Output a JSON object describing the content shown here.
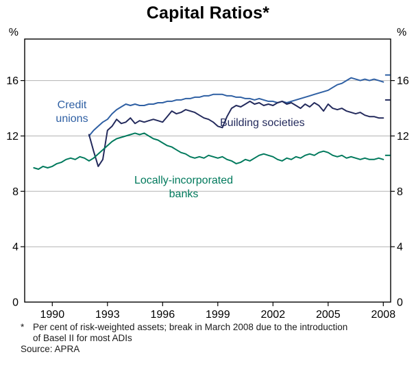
{
  "chart_data": {
    "type": "line",
    "title": "Capital Ratios*",
    "xlabel": "",
    "ylabel": "%",
    "xlim": [
      1988.5,
      2008.4
    ],
    "ylim": [
      0,
      19
    ],
    "x_ticks": [
      1990,
      1993,
      1996,
      1999,
      2002,
      2005,
      2008
    ],
    "y_ticks": [
      0,
      4,
      8,
      12,
      16
    ],
    "gridlines": [
      4,
      8,
      12,
      16
    ],
    "grid": true,
    "legend_position": "inline-annotations",
    "colors": {
      "axis": "#000000",
      "gridline": "#b3b3b3",
      "background": "#ffffff"
    },
    "break_note_x": [
      2008.1,
      2008.38
    ],
    "series": [
      {
        "id": "credit-unions",
        "name": "Credit unions",
        "color": "#2e5fa3",
        "x_start": 1992.0,
        "x_step_years": 0.25,
        "values": [
          12.0,
          12.4,
          12.7,
          13.0,
          13.2,
          13.6,
          13.9,
          14.1,
          14.3,
          14.2,
          14.3,
          14.2,
          14.2,
          14.3,
          14.3,
          14.4,
          14.4,
          14.5,
          14.5,
          14.6,
          14.6,
          14.7,
          14.7,
          14.8,
          14.8,
          14.9,
          14.9,
          15.0,
          15.0,
          15.0,
          14.9,
          14.9,
          14.8,
          14.8,
          14.7,
          14.7,
          14.6,
          14.7,
          14.6,
          14.5,
          14.5,
          14.4,
          14.5,
          14.4,
          14.5,
          14.6,
          14.7,
          14.8,
          14.9,
          15.0,
          15.1,
          15.2,
          15.3,
          15.5,
          15.7,
          15.8,
          16.0,
          16.2,
          16.1,
          16.0,
          16.1,
          16.0,
          16.1,
          16.0,
          15.9
        ],
        "break_march_2008_value": 16.4
      },
      {
        "id": "building-societies",
        "name": "Building societies",
        "color": "#232a5c",
        "x_start": 1992.0,
        "x_step_years": 0.25,
        "values": [
          12.1,
          10.9,
          9.8,
          10.3,
          12.4,
          12.7,
          13.2,
          12.9,
          13.0,
          13.3,
          12.9,
          13.1,
          13.0,
          13.1,
          13.2,
          13.1,
          13.0,
          13.4,
          13.8,
          13.6,
          13.7,
          13.9,
          13.8,
          13.7,
          13.5,
          13.3,
          13.2,
          13.0,
          12.7,
          12.6,
          13.4,
          14.0,
          14.2,
          14.1,
          14.3,
          14.5,
          14.3,
          14.4,
          14.2,
          14.3,
          14.2,
          14.4,
          14.5,
          14.3,
          14.4,
          14.2,
          14.0,
          14.3,
          14.1,
          14.4,
          14.2,
          13.8,
          14.3,
          14.0,
          13.9,
          14.0,
          13.8,
          13.7,
          13.6,
          13.7,
          13.5,
          13.4,
          13.4,
          13.3,
          13.3
        ],
        "break_march_2008_value": 14.6
      },
      {
        "id": "locally-incorporated-banks",
        "name": "Locally-incorporated banks",
        "color": "#00795c",
        "x_start": 1989.0,
        "x_step_years": 0.25,
        "values": [
          9.7,
          9.6,
          9.8,
          9.7,
          9.8,
          10.0,
          10.1,
          10.3,
          10.4,
          10.3,
          10.5,
          10.4,
          10.2,
          10.4,
          10.7,
          11.0,
          11.3,
          11.6,
          11.8,
          11.9,
          12.0,
          12.1,
          12.2,
          12.1,
          12.2,
          12.0,
          11.8,
          11.7,
          11.5,
          11.3,
          11.2,
          11.0,
          10.8,
          10.7,
          10.5,
          10.4,
          10.5,
          10.4,
          10.6,
          10.5,
          10.4,
          10.5,
          10.3,
          10.2,
          10.0,
          10.1,
          10.3,
          10.2,
          10.4,
          10.6,
          10.7,
          10.6,
          10.5,
          10.3,
          10.2,
          10.4,
          10.3,
          10.5,
          10.4,
          10.6,
          10.7,
          10.6,
          10.8,
          10.9,
          10.8,
          10.6,
          10.5,
          10.6,
          10.4,
          10.5,
          10.4,
          10.3,
          10.4,
          10.3,
          10.3,
          10.4,
          10.3
        ],
        "break_march_2008_value": 10.6
      }
    ],
    "annotations": {
      "credit_unions": {
        "line1": "Credit",
        "line2": "unions"
      },
      "building_societies": {
        "line1": "Building societies"
      },
      "banks": {
        "line1": "Locally-incorporated",
        "line2": "banks"
      }
    }
  },
  "footer": {
    "footnote_star": "*",
    "footnote_lines": [
      "Per cent of risk-weighted assets; break in March 2008 due to the introduction",
      "of Basel II for most ADIs"
    ],
    "source": "Source: APRA"
  }
}
